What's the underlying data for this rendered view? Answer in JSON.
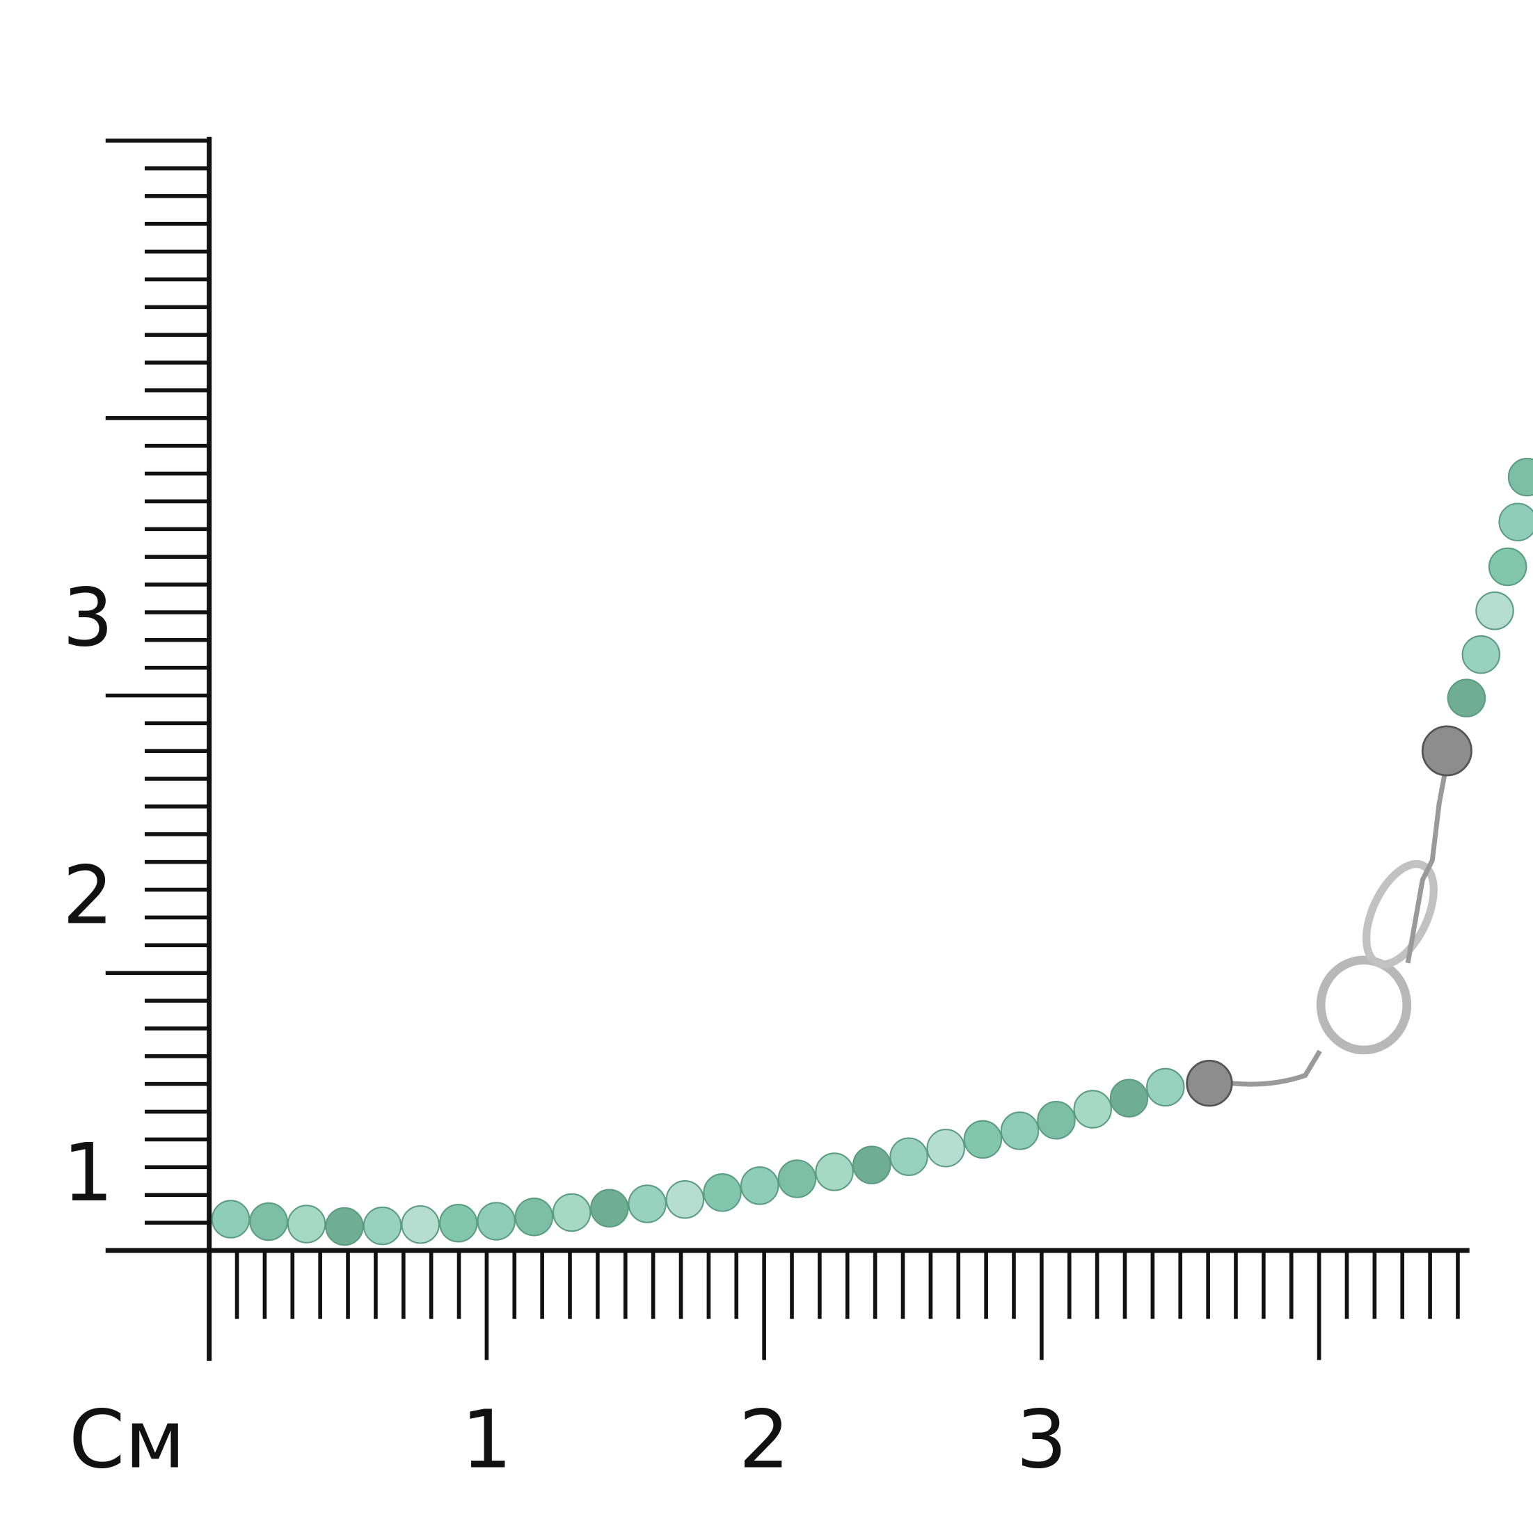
{
  "ruler": {
    "unit": "См",
    "x_labels": [
      "1",
      "2",
      "3"
    ],
    "y_labels": [
      "1",
      "2",
      "3"
    ]
  }
}
